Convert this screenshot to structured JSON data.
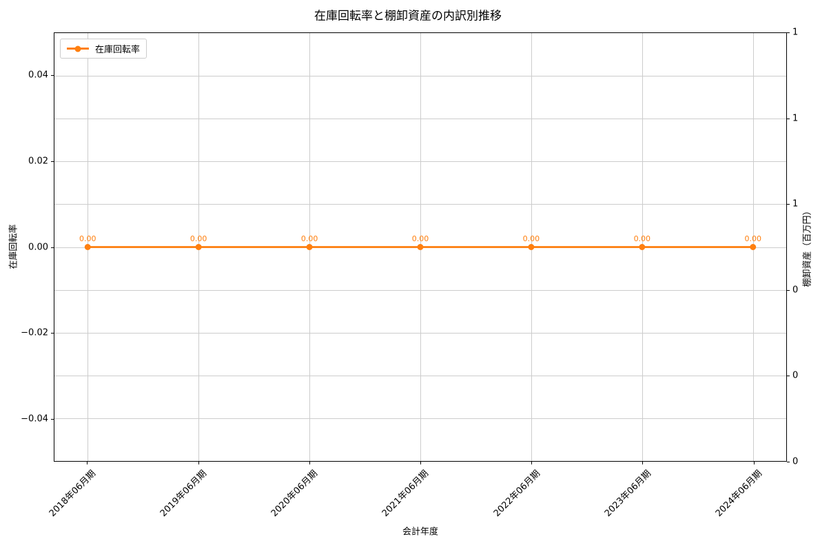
{
  "chart_data": {
    "type": "line",
    "title": "在庫回転率と棚卸資産の内訳別推移",
    "xlabel": "会計年度",
    "ylabel_left": "在庫回転率",
    "ylabel_right": "棚卸資産（百万円）",
    "categories": [
      "2018年06月期",
      "2019年06月期",
      "2020年06月期",
      "2021年06月期",
      "2022年06月期",
      "2023年06月期",
      "2024年06月期"
    ],
    "series": [
      {
        "name": "在庫回転率",
        "axis": "left",
        "marker": "circle",
        "values": [
          0,
          0,
          0,
          0,
          0,
          0,
          0
        ],
        "data_labels": [
          "0.00",
          "0.00",
          "0.00",
          "0.00",
          "0.00",
          "0.00",
          "0.00"
        ]
      }
    ],
    "left_axis": {
      "ylim": [
        -0.05,
        0.05
      ],
      "ticks": [
        0.04,
        0.02,
        0,
        -0.02,
        -0.04
      ],
      "tick_labels": [
        "0.04",
        "0.02",
        "0.00",
        "−0.02",
        "−0.04"
      ]
    },
    "right_axis": {
      "ylim": [
        0,
        1
      ],
      "ticks": [
        1,
        0.8,
        0.6,
        0.4,
        0.2,
        0
      ],
      "tick_labels": [
        "1",
        "1",
        "1",
        "0",
        "0",
        "0"
      ]
    },
    "legend": {
      "location": "upper left",
      "entries": [
        "在庫回転率"
      ]
    },
    "grid": true,
    "colors": {
      "series": "#ff7f0e",
      "grid": "#cccccc",
      "axis": "#000000",
      "background": "#ffffff",
      "text": "#000000"
    }
  }
}
